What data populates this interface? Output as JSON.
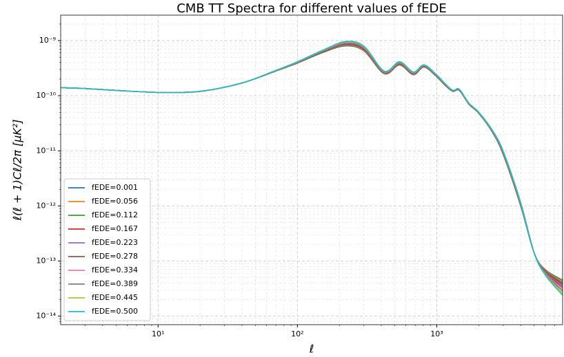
{
  "chart_data": {
    "type": "line",
    "title": "CMB TT Spectra for different values of fEDE",
    "xlabel": "ℓ",
    "ylabel": "ℓ(ℓ + 1)Cℓ/2π [μK²]",
    "xlog": true,
    "ylog": true,
    "grid": true,
    "legend": "lower left",
    "xlim": [
      2,
      8000
    ],
    "ylim": [
      7e-15,
      2.9e-09
    ],
    "xticks": [
      {
        "value": 10,
        "label": "10¹"
      },
      {
        "value": 100,
        "label": "10²"
      },
      {
        "value": 1000,
        "label": "10³"
      }
    ],
    "yticks": [
      {
        "value": 1e-14,
        "label": "10⁻¹⁴"
      },
      {
        "value": 1e-13,
        "label": "10⁻¹³"
      },
      {
        "value": 1e-12,
        "label": "10⁻¹²"
      },
      {
        "value": 1e-11,
        "label": "10⁻¹¹"
      },
      {
        "value": 1e-10,
        "label": "10⁻¹⁰"
      },
      {
        "value": 1e-09,
        "label": "10⁻⁹"
      }
    ],
    "xminorticks": [
      3,
      4,
      5,
      6,
      7,
      8,
      9,
      20,
      30,
      40,
      50,
      60,
      70,
      80,
      90,
      200,
      300,
      400,
      500,
      600,
      700,
      800,
      900,
      2000,
      3000,
      4000,
      5000,
      6000,
      7000
    ],
    "yminorticks": [
      8e-15,
      9e-15,
      2e-14,
      3e-14,
      4e-14,
      5e-14,
      6e-14,
      7e-14,
      8e-14,
      9e-14,
      2e-13,
      3e-13,
      4e-13,
      5e-13,
      6e-13,
      7e-13,
      8e-13,
      9e-13,
      2e-12,
      3e-12,
      4e-12,
      5e-12,
      6e-12,
      7e-12,
      8e-12,
      9e-12,
      2e-11,
      3e-11,
      4e-11,
      5e-11,
      6e-11,
      7e-11,
      8e-11,
      9e-11,
      2e-10,
      3e-10,
      4e-10,
      5e-10,
      6e-10,
      7e-10,
      8e-10,
      9e-10,
      2e-09
    ],
    "x": [
      2,
      3,
      5,
      10,
      20,
      40,
      70,
      100,
      150,
      220,
      300,
      420,
      540,
      680,
      810,
      1000,
      1130,
      1300,
      1450,
      1700,
      2000,
      2500,
      3000,
      4000,
      5000,
      6000,
      8000
    ],
    "series": [
      {
        "name": "fEDE=0.001",
        "color": "#1f77b4",
        "values": [
          1.4e-10,
          1.35e-10,
          1.25e-10,
          1.15e-10,
          1.2e-10,
          1.7e-10,
          2.8e-10,
          3.9e-10,
          6e-10,
          8e-10,
          6.5e-10,
          2.5e-10,
          3.6e-10,
          2.4e-10,
          3.3e-10,
          2.2e-10,
          1.6e-10,
          1.2e-10,
          1.25e-10,
          7e-11,
          4.8e-11,
          2.2e-11,
          8.5e-12,
          1e-12,
          1.4e-13,
          7e-14,
          4.5e-14
        ]
      },
      {
        "name": "fEDE=0.056",
        "color": "#ff7f0e",
        "values": [
          1.4e-10,
          1.35e-10,
          1.25e-10,
          1.15e-10,
          1.2e-10,
          1.7e-10,
          2.81e-10,
          3.93e-10,
          6.07e-10,
          8.18e-10,
          6.66e-10,
          2.53e-10,
          3.66e-10,
          2.43e-10,
          3.34e-10,
          2.22e-10,
          1.61e-10,
          1.21e-10,
          1.26e-10,
          7.04e-11,
          4.83e-11,
          2.22e-11,
          8.64e-12,
          1.02e-12,
          1.4e-13,
          6.84e-14,
          4.27e-14
        ]
      },
      {
        "name": "fEDE=0.112",
        "color": "#2ca02c",
        "values": [
          1.4e-10,
          1.35e-10,
          1.25e-10,
          1.15e-10,
          1.2e-10,
          1.7e-10,
          2.82e-10,
          3.95e-10,
          6.13e-10,
          8.36e-10,
          6.82e-10,
          2.57e-10,
          3.72e-10,
          2.46e-10,
          3.37e-10,
          2.24e-10,
          1.63e-10,
          1.21e-10,
          1.26e-10,
          7.08e-11,
          4.85e-11,
          2.24e-11,
          8.78e-12,
          1.03e-12,
          1.4e-13,
          6.69e-14,
          4.03e-14
        ]
      },
      {
        "name": "fEDE=0.167",
        "color": "#d62728",
        "values": [
          1.4e-10,
          1.35e-10,
          1.25e-10,
          1.15e-10,
          1.2e-10,
          1.7e-10,
          2.83e-10,
          3.98e-10,
          6.2e-10,
          8.53e-10,
          6.98e-10,
          2.6e-10,
          3.78e-10,
          2.5e-10,
          3.41e-10,
          2.26e-10,
          1.64e-10,
          1.22e-10,
          1.27e-10,
          7.12e-11,
          4.88e-11,
          2.26e-11,
          8.93e-12,
          1.05e-12,
          1.4e-13,
          6.53e-14,
          3.8e-14
        ]
      },
      {
        "name": "fEDE=0.223",
        "color": "#9467bd",
        "values": [
          1.4e-10,
          1.35e-10,
          1.25e-10,
          1.15e-10,
          1.2e-10,
          1.7e-10,
          2.84e-10,
          4e-10,
          6.27e-10,
          8.71e-10,
          7.14e-10,
          2.63e-10,
          3.84e-10,
          2.53e-10,
          3.45e-10,
          2.28e-10,
          1.66e-10,
          1.23e-10,
          1.28e-10,
          7.16e-11,
          4.91e-11,
          2.28e-11,
          9.07e-12,
          1.07e-12,
          1.4e-13,
          6.38e-14,
          3.56e-14
        ]
      },
      {
        "name": "fEDE=0.278",
        "color": "#8c564b",
        "values": [
          1.4e-10,
          1.35e-10,
          1.25e-10,
          1.15e-10,
          1.2e-10,
          1.7e-10,
          2.85e-10,
          4.03e-10,
          6.33e-10,
          8.89e-10,
          7.29e-10,
          2.67e-10,
          3.9e-10,
          2.56e-10,
          3.48e-10,
          2.3e-10,
          1.67e-10,
          1.23e-10,
          1.28e-10,
          7.19e-11,
          4.93e-11,
          2.3e-11,
          9.21e-12,
          1.08e-12,
          1.4e-13,
          6.22e-14,
          3.33e-14
        ]
      },
      {
        "name": "fEDE=0.334",
        "color": "#e377c2",
        "values": [
          1.4e-10,
          1.35e-10,
          1.25e-10,
          1.15e-10,
          1.2e-10,
          1.7e-10,
          2.86e-10,
          4.06e-10,
          6.4e-10,
          9.07e-10,
          7.45e-10,
          2.7e-10,
          3.96e-10,
          2.59e-10,
          3.52e-10,
          2.32e-10,
          1.69e-10,
          1.24e-10,
          1.29e-10,
          7.23e-11,
          4.96e-11,
          2.32e-11,
          9.35e-12,
          1.1e-12,
          1.4e-13,
          6.07e-14,
          3.09e-14
        ]
      },
      {
        "name": "fEDE=0.389",
        "color": "#7f7f7f",
        "values": [
          1.4e-10,
          1.35e-10,
          1.25e-10,
          1.15e-10,
          1.2e-10,
          1.7e-10,
          2.87e-10,
          4.08e-10,
          6.47e-10,
          9.24e-10,
          7.61e-10,
          2.73e-10,
          4.02e-10,
          2.62e-10,
          3.56e-10,
          2.34e-10,
          1.7e-10,
          1.25e-10,
          1.3e-10,
          7.27e-11,
          4.99e-11,
          2.34e-11,
          9.49e-12,
          1.12e-12,
          1.4e-13,
          5.91e-14,
          2.86e-14
        ]
      },
      {
        "name": "fEDE=0.445",
        "color": "#bcbd22",
        "values": [
          1.4e-10,
          1.35e-10,
          1.25e-10,
          1.15e-10,
          1.2e-10,
          1.7e-10,
          2.87e-10,
          4.11e-10,
          6.53e-10,
          9.42e-10,
          7.77e-10,
          2.77e-10,
          4.08e-10,
          2.66e-10,
          3.59e-10,
          2.36e-10,
          1.71e-10,
          1.25e-10,
          1.31e-10,
          7.31e-11,
          5.01e-11,
          2.36e-11,
          9.63e-12,
          1.13e-12,
          1.4e-13,
          5.76e-14,
          2.62e-14
        ]
      },
      {
        "name": "fEDE=0.500",
        "color": "#17becf",
        "values": [
          1.4e-10,
          1.35e-10,
          1.25e-10,
          1.15e-10,
          1.2e-10,
          1.7e-10,
          2.88e-10,
          4.13e-10,
          6.6e-10,
          9.6e-10,
          7.93e-10,
          2.8e-10,
          4.14e-10,
          2.69e-10,
          3.63e-10,
          2.38e-10,
          1.73e-10,
          1.26e-10,
          1.31e-10,
          7.35e-11,
          5.04e-11,
          2.38e-11,
          9.78e-12,
          1.15e-12,
          1.4e-13,
          5.6e-14,
          2.39e-14
        ]
      }
    ]
  }
}
